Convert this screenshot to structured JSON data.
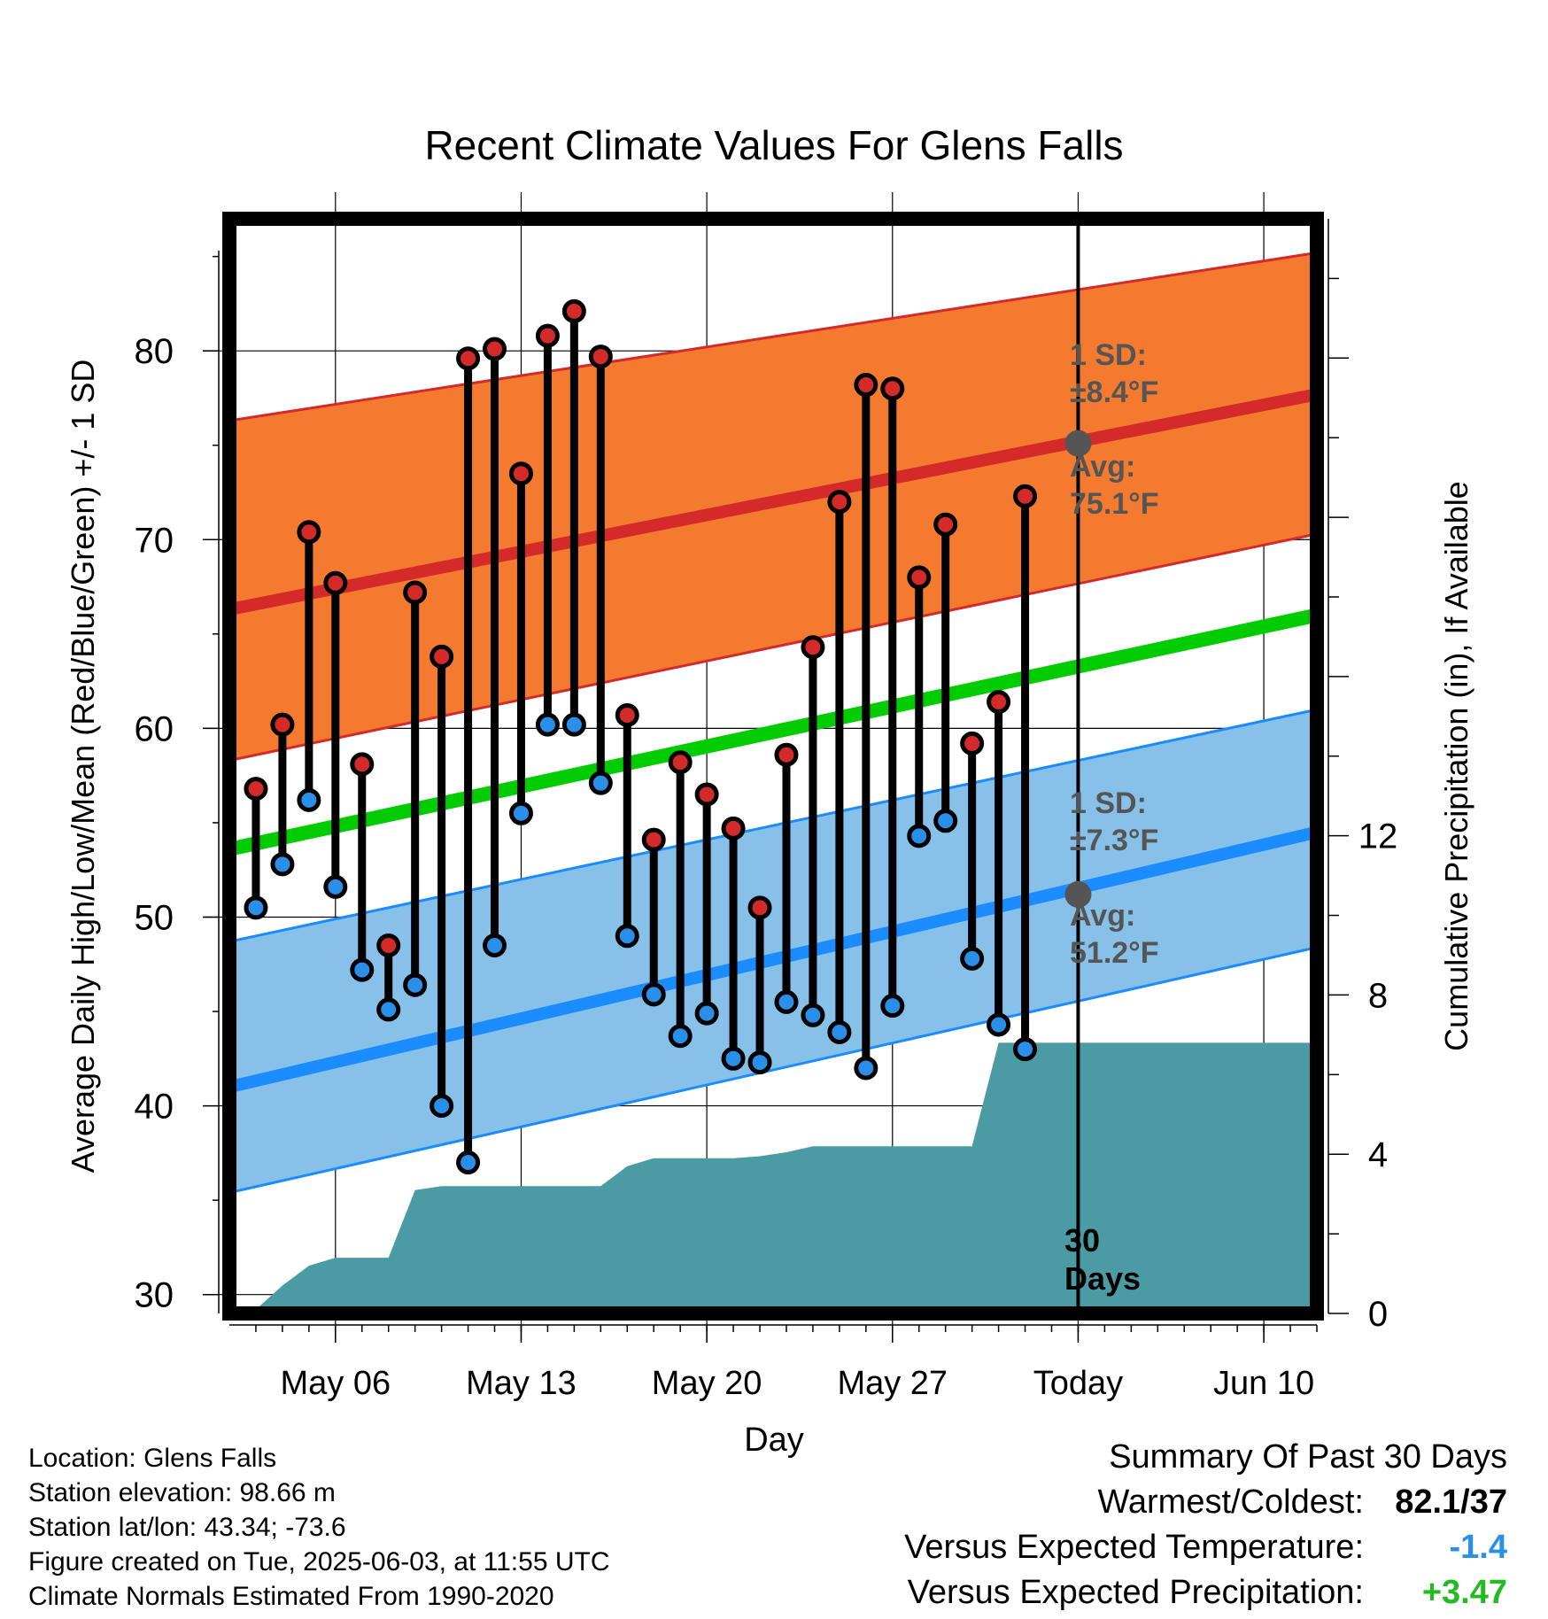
{
  "chart_data": {
    "type": "line",
    "title": "Recent Climate Values For Glens Falls",
    "xlabel": "Day",
    "ylabel": "Average Daily High/Low/Mean (Red/Blue/Green) +/- 1 SD",
    "y2label": "Cumulative Precipitation (in), If Available",
    "ylim": [
      29,
      87
    ],
    "y2lim": [
      0,
      27.5
    ],
    "xlim": [
      "2025-05-02",
      "2025-06-12"
    ],
    "today": "2025-06-03",
    "x_ticks": [
      {
        "date": "2025-05-06",
        "label": "May 06"
      },
      {
        "date": "2025-05-13",
        "label": "May 13"
      },
      {
        "date": "2025-05-20",
        "label": "May 20"
      },
      {
        "date": "2025-05-27",
        "label": "May 27"
      },
      {
        "date": "2025-06-03",
        "label": "Today"
      },
      {
        "date": "2025-06-10",
        "label": "Jun 10"
      }
    ],
    "y_ticks": [
      30,
      40,
      50,
      60,
      70,
      80
    ],
    "y2_ticks": [
      0,
      4,
      8,
      12
    ],
    "grid": true,
    "colors": {
      "high": "#d42a2a",
      "high_band": "#f47a30",
      "high_avg": "#d42a2a",
      "low": "#2a8fe8",
      "low_band": "#87c0e8",
      "low_avg": "#1a8cff",
      "mean_avg": "#00cc00",
      "precip": "#4a9ba4",
      "annotation": "#555555"
    },
    "normals": {
      "start": "2025-05-02",
      "end": "2025-06-12",
      "high_avg": [
        66.3,
        77.7
      ],
      "high_upper": [
        76.3,
        85.2
      ],
      "high_lower": [
        58.3,
        70.3
      ],
      "mean_avg": [
        53.6,
        66.0
      ],
      "low_avg": [
        41.0,
        54.5
      ],
      "low_upper": [
        48.7,
        61.0
      ],
      "low_lower": [
        35.4,
        48.4
      ]
    },
    "days": {
      "start": "2025-05-03",
      "high": [
        56.8,
        60.2,
        70.4,
        67.7,
        58.1,
        48.5,
        67.2,
        63.8,
        79.6,
        80.1,
        73.5,
        80.8,
        82.1,
        79.7,
        60.7,
        54.1,
        58.2,
        56.5,
        54.7,
        50.5,
        58.6,
        64.3,
        72.0,
        78.2,
        78.0,
        68.0,
        70.8,
        59.2,
        61.4,
        72.3
      ],
      "low": [
        50.5,
        52.8,
        56.2,
        51.6,
        47.2,
        45.1,
        46.4,
        40.0,
        37.0,
        48.5,
        55.5,
        60.2,
        60.2,
        57.1,
        49.0,
        45.9,
        43.7,
        44.9,
        42.5,
        42.3,
        45.5,
        44.8,
        43.9,
        42.0,
        45.3,
        54.3,
        55.1,
        47.8,
        44.3,
        43.0
      ]
    },
    "precip": {
      "dates": [
        "2025-05-02",
        "2025-05-03",
        "2025-05-04",
        "2025-05-05",
        "2025-05-06",
        "2025-05-07",
        "2025-05-08",
        "2025-05-09",
        "2025-05-10",
        "2025-05-12",
        "2025-05-14",
        "2025-05-15",
        "2025-05-16",
        "2025-05-17",
        "2025-05-18",
        "2025-05-19",
        "2025-05-20",
        "2025-05-21",
        "2025-05-22",
        "2025-05-23",
        "2025-05-24",
        "2025-05-25",
        "2025-05-30",
        "2025-05-31",
        "2025-06-03",
        "2025-06-12"
      ],
      "values": [
        0.0,
        0.1,
        0.7,
        1.2,
        1.4,
        1.4,
        1.4,
        3.1,
        3.2,
        3.2,
        3.2,
        3.2,
        3.2,
        3.7,
        3.9,
        3.9,
        3.9,
        3.9,
        3.95,
        4.05,
        4.2,
        4.2,
        4.2,
        6.8,
        6.8,
        6.8
      ]
    },
    "annotations": {
      "high_sd_label": "1 SD:",
      "high_sd_value": "±8.4°F",
      "high_avg_label": "Avg:",
      "high_avg_value": "75.1°F",
      "low_sd_label": "1 SD:",
      "low_sd_value": "±7.3°F",
      "low_avg_label": "Avg:",
      "low_avg_value": "51.2°F",
      "today_avg_high": 75.1,
      "today_avg_low": 51.2,
      "days_line1": "30",
      "days_line2": "Days"
    }
  },
  "info": {
    "location": "Location: Glens Falls",
    "elevation": "Station elevation: 98.66 m",
    "latlon": "Station lat/lon: 43.34; -73.6",
    "created": "Figure created on Tue, 2025-06-03, at 11:55 UTC",
    "normals": "Climate Normals Estimated From 1990-2020"
  },
  "summary": {
    "title": "Summary Of Past 30 Days",
    "warmest_label": "Warmest/Coldest:",
    "warmest_value": "82.1",
    "slash": "/",
    "coldest_value": "37",
    "temp_label": "Versus Expected Temperature:",
    "temp_value": "-1.4",
    "temp_color": "#2a8fe8",
    "precip_label": "Versus Expected Precipitation:",
    "precip_value": "+3.47",
    "precip_color": "#22bb22"
  }
}
